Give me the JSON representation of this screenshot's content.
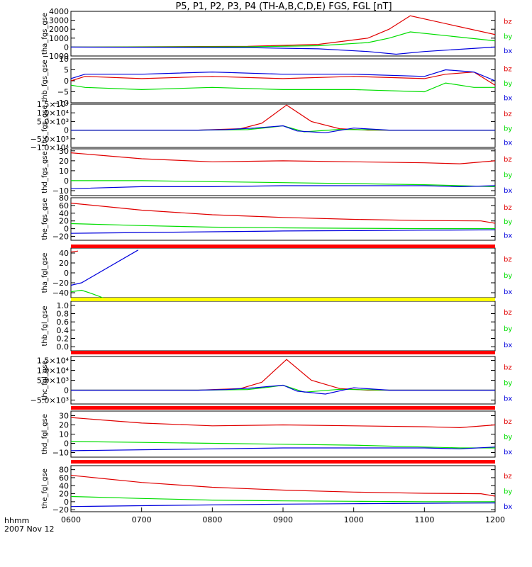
{
  "title": "P5, P1, P2, P3, P4 (TH-A,B,C,D,E) FGS, FGL [nT]",
  "x_axis": {
    "ticks": [
      "0600",
      "0700",
      "0800",
      "0900",
      "1000",
      "1100",
      "1200"
    ],
    "corner_label_1": "hhmm",
    "corner_label_2": "2007 Nov 12"
  },
  "colors": {
    "bz": "#e00000",
    "by": "#00dd00",
    "bx": "#0000dd",
    "bar_red": "#ff0000",
    "bar_yellow": "#ffff00",
    "axis": "#000000"
  },
  "chart_data": [
    {
      "type": "line",
      "ylabel": "tha_fgs_gse",
      "ylim": [
        -1000,
        4000
      ],
      "yticks": [
        "4000",
        "3000",
        "2000",
        "1000",
        "0",
        "−1000"
      ],
      "ytick_values": [
        4000,
        3000,
        2000,
        1000,
        0,
        -1000
      ],
      "series": [
        {
          "name": "bz",
          "x": [
            6.0,
            8.5,
            9.5,
            10.2,
            10.5,
            10.8,
            12.0
          ],
          "y": [
            0,
            80,
            300,
            1000,
            2000,
            3500,
            1400
          ]
        },
        {
          "name": "by",
          "x": [
            6.0,
            8.5,
            9.5,
            10.2,
            10.5,
            10.8,
            12.0
          ],
          "y": [
            0,
            30,
            150,
            500,
            1000,
            1700,
            700
          ]
        },
        {
          "name": "bx",
          "x": [
            6.0,
            8.5,
            9.5,
            10.2,
            10.6,
            11.0,
            12.0
          ],
          "y": [
            0,
            -60,
            -200,
            -500,
            -800,
            -500,
            0
          ]
        }
      ]
    },
    {
      "type": "line",
      "ylabel": "thb_fgs_gse",
      "ylim": [
        -10,
        10
      ],
      "yticks": [
        "10",
        "5",
        "0",
        "−5",
        "−10"
      ],
      "ytick_values": [
        10,
        5,
        0,
        -5,
        -10
      ],
      "series": [
        {
          "name": "bz",
          "x": [
            6.0,
            6.2,
            7.0,
            8.0,
            9.0,
            10.0,
            11.0,
            11.3,
            11.7,
            12.0
          ],
          "y": [
            0,
            2,
            1,
            2,
            1,
            2,
            1,
            3,
            4,
            -2
          ]
        },
        {
          "name": "by",
          "x": [
            6.0,
            6.2,
            7.0,
            8.0,
            9.0,
            10.0,
            11.0,
            11.3,
            11.7,
            12.0
          ],
          "y": [
            -2,
            -3,
            -4,
            -3,
            -4,
            -4,
            -5,
            -1,
            -3,
            -3
          ]
        },
        {
          "name": "bx",
          "x": [
            6.0,
            6.2,
            7.0,
            8.0,
            9.0,
            10.0,
            11.0,
            11.3,
            11.7,
            12.0
          ],
          "y": [
            1,
            3,
            3,
            4,
            3,
            3,
            2,
            5,
            4,
            0
          ]
        }
      ]
    },
    {
      "type": "line",
      "ylabel": "thc_fgs_gse",
      "ylim": [
        -10000,
        15000
      ],
      "yticks": [
        "1.5×10⁴",
        "1.0×10⁴",
        "5.0×10³",
        "0",
        "−5.0×10³",
        "−1.0×10⁴"
      ],
      "ytick_values": [
        15000,
        10000,
        5000,
        0,
        -5000,
        -10000
      ],
      "series": [
        {
          "name": "bz",
          "x": [
            6.0,
            7.8,
            8.4,
            8.7,
            9.05,
            9.4,
            9.8,
            10.2,
            12.0
          ],
          "y": [
            0,
            0,
            800,
            4000,
            14500,
            5000,
            800,
            0,
            0
          ]
        },
        {
          "name": "by",
          "x": [
            6.0,
            7.8,
            8.5,
            8.8,
            9.0,
            9.3,
            9.8,
            10.5,
            12.0
          ],
          "y": [
            0,
            0,
            300,
            1500,
            2500,
            -1000,
            400,
            0,
            0
          ]
        },
        {
          "name": "bx",
          "x": [
            6.0,
            7.8,
            8.2,
            8.6,
            9.0,
            9.2,
            9.6,
            10.0,
            10.5,
            12.0
          ],
          "y": [
            0,
            0,
            300,
            1200,
            2500,
            -500,
            -1500,
            1200,
            0,
            0
          ]
        }
      ]
    },
    {
      "type": "line",
      "ylabel": "thd_fgs_gse",
      "ylim": [
        -15,
        32
      ],
      "yticks": [
        "30",
        "20",
        "10",
        "0",
        "−10"
      ],
      "ytick_values": [
        30,
        20,
        10,
        0,
        -10
      ],
      "series": [
        {
          "name": "bz",
          "x": [
            6.0,
            7.0,
            8.0,
            9.0,
            10.0,
            11.0,
            11.5,
            12.0
          ],
          "y": [
            28,
            22,
            19,
            20,
            19,
            18,
            17,
            20
          ]
        },
        {
          "name": "by",
          "x": [
            6.0,
            7.0,
            8.0,
            9.0,
            10.0,
            11.0,
            11.5,
            12.0
          ],
          "y": [
            0,
            0,
            -1,
            -2,
            -3,
            -4,
            -5,
            -6
          ]
        },
        {
          "name": "bx",
          "x": [
            6.0,
            7.0,
            8.0,
            9.0,
            10.0,
            11.0,
            11.5,
            12.0
          ],
          "y": [
            -8,
            -6,
            -6,
            -5,
            -5,
            -5,
            -6,
            -5
          ]
        }
      ]
    },
    {
      "type": "line",
      "ylabel": "the_fgs_gse",
      "ylim": [
        -30,
        80
      ],
      "yticks": [
        "80",
        "60",
        "40",
        "20",
        "0",
        "−20"
      ],
      "ytick_values": [
        80,
        60,
        40,
        20,
        0,
        -20
      ],
      "series": [
        {
          "name": "bz",
          "x": [
            6.0,
            7.0,
            8.0,
            9.0,
            10.0,
            11.0,
            11.8,
            12.0
          ],
          "y": [
            66,
            48,
            36,
            29,
            24,
            21,
            20,
            14
          ]
        },
        {
          "name": "by",
          "x": [
            6.0,
            7.0,
            8.0,
            9.0,
            10.0,
            11.0,
            12.0
          ],
          "y": [
            13,
            8,
            4,
            2,
            1,
            0,
            0
          ]
        },
        {
          "name": "bx",
          "x": [
            6.0,
            7.0,
            8.0,
            9.0,
            10.0,
            11.0,
            12.0
          ],
          "y": [
            -12,
            -10,
            -8,
            -6,
            -5,
            -4,
            -3
          ]
        }
      ]
    },
    {
      "type": "line",
      "ylabel": "tha_fgl_gse",
      "ylim": [
        -50,
        50
      ],
      "yticks": [
        "40",
        "20",
        "0",
        "−20",
        "−40"
      ],
      "ytick_values": [
        40,
        20,
        0,
        -20,
        -40
      ],
      "series": [
        {
          "name": "bz",
          "x": [
            6.0,
            6.1
          ],
          "y": [
            42,
            44
          ]
        },
        {
          "name": "by",
          "x": [
            6.0,
            6.15,
            6.3,
            6.45
          ],
          "y": [
            -38,
            -35,
            -42,
            -50
          ]
        },
        {
          "name": "bx",
          "x": [
            6.0,
            6.15,
            6.95
          ],
          "y": [
            -25,
            -20,
            46
          ]
        }
      ]
    },
    {
      "type": "line",
      "ylabel": "thb_fgl_gse",
      "ylim": [
        -0.1,
        1.1
      ],
      "yticks": [
        "1.0",
        "0.8",
        "0.6",
        "0.4",
        "0.2",
        "0.0"
      ],
      "ytick_values": [
        1.0,
        0.8,
        0.6,
        0.4,
        0.2,
        0.0
      ],
      "series": []
    },
    {
      "type": "line",
      "ylabel": "thc_fgl_gse",
      "ylim": [
        -7000,
        17000
      ],
      "yticks": [
        "1.5×10⁴",
        "1.0×10⁴",
        "5.0×10³",
        "0",
        "−5.0×10³"
      ],
      "ytick_values": [
        15000,
        10000,
        5000,
        0,
        -5000
      ],
      "series": [
        {
          "name": "bz",
          "x": [
            6.0,
            7.8,
            8.4,
            8.7,
            9.05,
            9.4,
            9.8,
            10.2,
            12.0
          ],
          "y": [
            0,
            0,
            800,
            4000,
            15500,
            5000,
            800,
            0,
            0
          ]
        },
        {
          "name": "by",
          "x": [
            6.0,
            7.8,
            8.5,
            8.8,
            9.0,
            9.3,
            9.8,
            10.5,
            12.0
          ],
          "y": [
            0,
            0,
            300,
            1500,
            2500,
            -1000,
            400,
            0,
            0
          ]
        },
        {
          "name": "bx",
          "x": [
            6.0,
            7.8,
            8.2,
            8.6,
            9.0,
            9.2,
            9.6,
            10.0,
            10.5,
            12.0
          ],
          "y": [
            0,
            0,
            300,
            1200,
            2500,
            -500,
            -2000,
            1200,
            0,
            0
          ]
        }
      ]
    },
    {
      "type": "line",
      "ylabel": "thd_fgl_gse",
      "ylim": [
        -15,
        35
      ],
      "yticks": [
        "30",
        "20",
        "10",
        "0",
        "−10"
      ],
      "ytick_values": [
        30,
        20,
        10,
        0,
        -10
      ],
      "series": [
        {
          "name": "bz",
          "x": [
            6.0,
            7.0,
            8.0,
            9.0,
            10.0,
            11.0,
            11.5,
            12.0
          ],
          "y": [
            28,
            22,
            19,
            20,
            19,
            18,
            17,
            20
          ]
        },
        {
          "name": "by",
          "x": [
            6.0,
            7.0,
            8.0,
            9.0,
            10.0,
            11.0,
            11.5,
            12.0
          ],
          "y": [
            2,
            1,
            0,
            -1,
            -2,
            -4,
            -5,
            -5
          ]
        },
        {
          "name": "bx",
          "x": [
            6.0,
            7.0,
            8.0,
            9.0,
            10.0,
            11.0,
            11.5,
            12.0
          ],
          "y": [
            -8,
            -7,
            -6,
            -5,
            -5,
            -5,
            -6,
            -4
          ]
        }
      ]
    },
    {
      "type": "line",
      "ylabel": "the_fgl_gse",
      "ylim": [
        -25,
        90
      ],
      "yticks": [
        "80",
        "60",
        "40",
        "20",
        "0",
        "−20"
      ],
      "ytick_values": [
        80,
        60,
        40,
        20,
        0,
        -20
      ],
      "series": [
        {
          "name": "bz",
          "x": [
            6.0,
            7.0,
            8.0,
            9.0,
            10.0,
            11.0,
            11.8,
            12.0
          ],
          "y": [
            66,
            48,
            36,
            29,
            24,
            21,
            20,
            14
          ]
        },
        {
          "name": "by",
          "x": [
            6.0,
            7.0,
            8.0,
            9.0,
            10.0,
            11.0,
            12.0
          ],
          "y": [
            13,
            8,
            4,
            2,
            1,
            0,
            0
          ]
        },
        {
          "name": "bx",
          "x": [
            6.0,
            7.0,
            8.0,
            9.0,
            10.0,
            11.0,
            12.0
          ],
          "y": [
            -12,
            -10,
            -8,
            -6,
            -5,
            -4,
            -3
          ]
        }
      ]
    }
  ]
}
